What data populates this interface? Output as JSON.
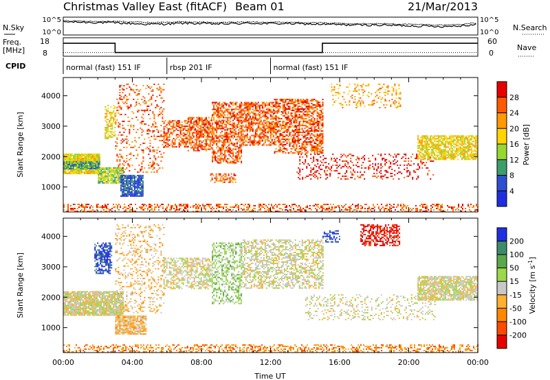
{
  "chart_data": [
    {
      "type": "header",
      "title": "Christmas Valley East (fitACF)",
      "beam": "Beam 01",
      "date": "21/Mar/2013"
    },
    {
      "type": "line",
      "name": "sky-search-noise",
      "left_label": "N.Sky",
      "right_label": "N.Search",
      "ticks": [
        "10^5",
        "10^0"
      ],
      "x": [
        0,
        1,
        2,
        3,
        4,
        5,
        6,
        7,
        8,
        9,
        10,
        11,
        12,
        13,
        14,
        15,
        16,
        17,
        18,
        19,
        20,
        21,
        22,
        23,
        24
      ],
      "series": [
        {
          "values": [
            3.7,
            3.6,
            3.5,
            3.4,
            3.2,
            3.0,
            3.1,
            3.3,
            3.2,
            3.1,
            3.2,
            3.3,
            3.2,
            3.2,
            3.1,
            3.0,
            2.9,
            2.8,
            2.8,
            2.7,
            2.6,
            2.5,
            2.4,
            2.6,
            3.0
          ]
        },
        {
          "values": [
            4.0,
            3.9,
            3.8,
            3.8,
            3.7,
            3.5,
            3.6,
            3.7,
            3.6,
            3.5,
            3.6,
            3.7,
            3.6,
            3.6,
            3.5,
            3.4,
            3.3,
            3.2,
            3.2,
            3.1,
            3.0,
            2.9,
            2.8,
            3.0,
            3.4
          ]
        }
      ]
    },
    {
      "type": "line",
      "name": "frequency-nave",
      "left_label_lines": [
        "Freq.",
        "[MHz]"
      ],
      "right_label": "Nave",
      "left_ticks": [
        "18",
        "8"
      ],
      "right_ticks": [
        "60",
        "0"
      ],
      "freq_ylim": [
        8,
        18
      ],
      "freq": [
        {
          "t": 0,
          "v": 15
        },
        {
          "t": 3.0,
          "v": 15
        },
        {
          "t": 3.0,
          "v": 10
        },
        {
          "t": 15.0,
          "v": 10
        },
        {
          "t": 15.0,
          "v": 15
        },
        {
          "t": 24,
          "v": 15
        }
      ],
      "nave_level": 12
    },
    {
      "type": "table",
      "name": "cpid",
      "label": "CPID",
      "segments": [
        {
          "start": 0,
          "end": 6,
          "label": "normal (fast) 151 IF"
        },
        {
          "start": 6,
          "end": 12,
          "label": "rbsp 201 IF"
        },
        {
          "start": 12,
          "end": 24,
          "label": "normal (fast) 151 IF"
        }
      ]
    },
    {
      "type": "heatmap",
      "name": "power",
      "ylabel": "Slant Range [km]",
      "cbar_label": "Power [dB]",
      "xlim": [
        0,
        24
      ],
      "ylim": [
        180,
        4600
      ],
      "yticks": [
        1000,
        2000,
        3000,
        4000
      ],
      "colorbar": {
        "ticks": [
          "28",
          "24",
          "20",
          "16",
          "12",
          "8",
          "4"
        ],
        "colors": [
          "#e60000",
          "#ff5a00",
          "#ff9900",
          "#ffd400",
          "#97d830",
          "#3d9d6b",
          "#2f4fd1",
          "#1f2fe0"
        ]
      },
      "regions": [
        {
          "t0": 0.0,
          "t1": 2.1,
          "r0": 1450,
          "r1": 2100,
          "level": 3,
          "density": 0.95
        },
        {
          "t0": 0.0,
          "t1": 2.1,
          "r0": 1600,
          "r1": 1850,
          "level": 5,
          "density": 0.9
        },
        {
          "t0": 2.0,
          "t1": 3.5,
          "r0": 1150,
          "r1": 1650,
          "level": 4,
          "density": 0.9
        },
        {
          "t0": 2.4,
          "t1": 3.0,
          "r0": 2600,
          "r1": 3700,
          "level": 3,
          "density": 0.5
        },
        {
          "t0": 3.3,
          "t1": 4.6,
          "r0": 700,
          "r1": 1400,
          "level": 6,
          "density": 0.85
        },
        {
          "t0": 3.0,
          "t1": 5.8,
          "r0": 1500,
          "r1": 4400,
          "level": 1,
          "density": 0.18
        },
        {
          "t0": 5.8,
          "t1": 7.2,
          "r0": 2300,
          "r1": 3200,
          "level": 1,
          "density": 0.55
        },
        {
          "t0": 7.2,
          "t1": 8.6,
          "r0": 2200,
          "r1": 3300,
          "level": 1,
          "density": 0.6
        },
        {
          "t0": 8.6,
          "t1": 10.3,
          "r0": 1800,
          "r1": 3800,
          "level": 1,
          "density": 0.55
        },
        {
          "t0": 10.3,
          "t1": 12.2,
          "r0": 2400,
          "r1": 3800,
          "level": 1,
          "density": 0.6
        },
        {
          "t0": 12.2,
          "t1": 15.0,
          "r0": 2100,
          "r1": 3900,
          "level": 1,
          "density": 0.55
        },
        {
          "t0": 8.5,
          "t1": 10.0,
          "r0": 1150,
          "r1": 1450,
          "level": 1,
          "density": 0.5
        },
        {
          "t0": 13.5,
          "t1": 21.5,
          "r0": 1250,
          "r1": 2100,
          "level": 0,
          "density": 0.18
        },
        {
          "t0": 15.5,
          "t1": 19.5,
          "r0": 3600,
          "r1": 4400,
          "level": 2,
          "density": 0.2
        },
        {
          "t0": 20.5,
          "t1": 24.0,
          "r0": 1900,
          "r1": 2700,
          "level": 3,
          "density": 0.75
        },
        {
          "t0": 0.0,
          "t1": 24.0,
          "r0": 200,
          "r1": 450,
          "level": 1,
          "density": 0.35
        }
      ]
    },
    {
      "type": "heatmap",
      "name": "velocity",
      "ylabel": "Slant Range [km]",
      "xlabel": "Time UT",
      "cbar_label": "Velocity [m s^-1]",
      "xlim": [
        0,
        24
      ],
      "ylim": [
        180,
        4600
      ],
      "yticks": [
        1000,
        2000,
        3000,
        4000
      ],
      "xticks": [
        "00:00",
        "04:00",
        "08:00",
        "12:00",
        "16:00",
        "20:00",
        "00:00"
      ],
      "colorbar": {
        "ticks": [
          "200",
          "100",
          "50",
          "15",
          "-15",
          "-50",
          "-100",
          "-200"
        ],
        "colors": [
          "#1f2fe0",
          "#3d8b6b",
          "#5aa84a",
          "#9bd84a",
          "#c8c8c8",
          "#ffb030",
          "#ff8800",
          "#ff4a00",
          "#e60000"
        ]
      },
      "regions": [
        {
          "t0": 0.0,
          "t1": 3.5,
          "r0": 1400,
          "r1": 2200,
          "level": 4,
          "density": 0.9
        },
        {
          "t0": 1.8,
          "t1": 2.8,
          "r0": 2800,
          "r1": 3800,
          "level": 0,
          "density": 0.6
        },
        {
          "t0": 3.0,
          "t1": 4.8,
          "r0": 800,
          "r1": 1400,
          "level": 5,
          "density": 0.8
        },
        {
          "t0": 3.0,
          "t1": 5.8,
          "r0": 1500,
          "r1": 4400,
          "level": 5,
          "density": 0.2
        },
        {
          "t0": 5.8,
          "t1": 8.6,
          "r0": 2300,
          "r1": 3300,
          "level": 4,
          "density": 0.55
        },
        {
          "t0": 8.6,
          "t1": 10.3,
          "r0": 1800,
          "r1": 3800,
          "level": 3,
          "density": 0.45
        },
        {
          "t0": 10.3,
          "t1": 15.0,
          "r0": 2300,
          "r1": 3900,
          "level": 4,
          "density": 0.5
        },
        {
          "t0": 14.0,
          "t1": 21.5,
          "r0": 1250,
          "r1": 2100,
          "level": 4,
          "density": 0.2
        },
        {
          "t0": 17.2,
          "t1": 19.5,
          "r0": 3700,
          "r1": 4400,
          "level": 8,
          "density": 0.5
        },
        {
          "t0": 15.0,
          "t1": 16.0,
          "r0": 3800,
          "r1": 4200,
          "level": 0,
          "density": 0.4
        },
        {
          "t0": 20.5,
          "t1": 24.0,
          "r0": 1900,
          "r1": 2700,
          "level": 4,
          "density": 0.8
        },
        {
          "t0": 0.0,
          "t1": 24.0,
          "r0": 200,
          "r1": 450,
          "level": 6,
          "density": 0.4
        }
      ]
    }
  ]
}
